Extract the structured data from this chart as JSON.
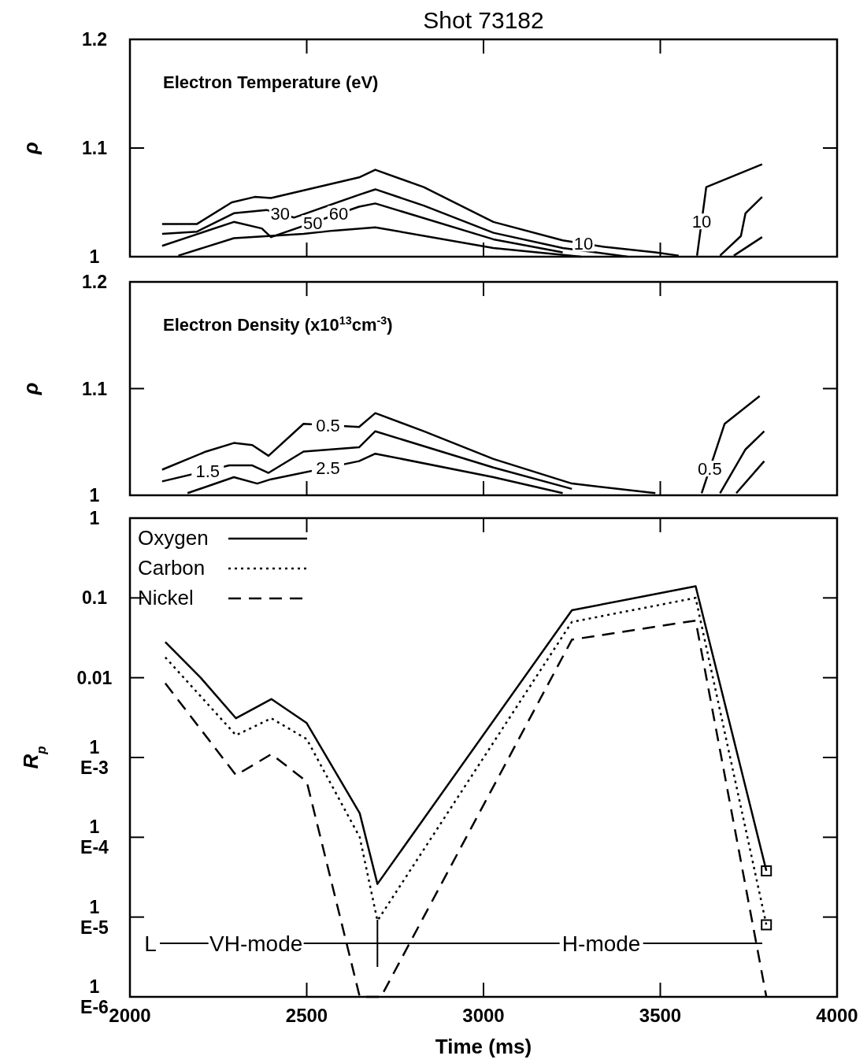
{
  "chart_data": [
    {
      "type": "line",
      "title": "Shot 73182",
      "subtitle": "Electron Temperature (eV)",
      "ylabel": "ρ",
      "xlim": [
        2000,
        4000
      ],
      "xticks": [
        2000,
        2500,
        3000,
        3500,
        4000
      ],
      "ylim": [
        1,
        1.2
      ],
      "yticks": [
        1,
        1.1,
        1.2
      ],
      "tick_labels": "y",
      "grid": false,
      "legend": false,
      "series": [
        {
          "color": "#000000",
          "x": [
            2091,
            2189,
            2288,
            2353,
            2399,
            2648,
            2694,
            2831,
            3028,
            3224,
            3342,
            3486,
            3552
          ],
          "values": [
            1.03,
            1.03,
            1.05,
            1.055,
            1.054,
            1.073,
            1.08,
            1.064,
            1.032,
            1.015,
            1.009,
            1.004,
            1.001
          ]
        },
        {
          "color": "#000000",
          "x": [
            2091,
            2189,
            2294,
            2386,
            2464,
            2648,
            2694,
            2831,
            3028,
            3224,
            3408
          ],
          "values": [
            1.021,
            1.023,
            1.04,
            1.043,
            1.036,
            1.057,
            1.062,
            1.047,
            1.022,
            1.008,
            1.0
          ]
        },
        {
          "color": "#000000",
          "x": [
            2091,
            2294,
            2373,
            2399,
            2648,
            2694,
            3028,
            3224
          ],
          "values": [
            1.01,
            1.032,
            1.026,
            1.018,
            1.046,
            1.049,
            1.016,
            1.004
          ]
        },
        {
          "color": "#000000",
          "x": [
            2137,
            2294,
            2491,
            2576,
            2694,
            3028,
            3276
          ],
          "values": [
            1.001,
            1.017,
            1.021,
            1.024,
            1.027,
            1.008,
            1.0
          ]
        },
        {
          "color": "#000000",
          "x": [
            3604,
            3630,
            3788
          ],
          "values": [
            1.001,
            1.064,
            1.085
          ]
        },
        {
          "color": "#000000",
          "x": [
            3669,
            3728,
            3741,
            3788
          ],
          "values": [
            1.001,
            1.019,
            1.04,
            1.055
          ]
        },
        {
          "color": "#000000",
          "x": [
            3708,
            3788
          ],
          "values": [
            1.001,
            1.018
          ]
        }
      ],
      "annotations": [
        {
          "text": "30",
          "x": 2425,
          "y": 1.0395
        },
        {
          "text": "50",
          "x": 2517,
          "y": 1.031
        },
        {
          "text": "60",
          "x": 2590,
          "y": 1.0395
        },
        {
          "text": "10",
          "x": 3283,
          "y": 1.012
        },
        {
          "text": "10",
          "x": 3617,
          "y": 1.0325
        }
      ]
    },
    {
      "type": "line",
      "subtitle": "Electron Density (x10$^{13}$cm$^{-3}$)",
      "ylabel": "ρ",
      "xlim": [
        2000,
        4000
      ],
      "xticks": [
        2000,
        2500,
        3000,
        3500,
        4000
      ],
      "ylim": [
        1,
        1.2
      ],
      "yticks": [
        1,
        1.1,
        1.2
      ],
      "tick_labels": "y",
      "grid": false,
      "legend": false,
      "series": [
        {
          "color": "#000000",
          "x": [
            2091,
            2215,
            2294,
            2346,
            2392,
            2491,
            2648,
            2694,
            2831,
            3028,
            3250,
            3486
          ],
          "values": [
            1.024,
            1.041,
            1.049,
            1.047,
            1.037,
            1.067,
            1.064,
            1.077,
            1.06,
            1.034,
            1.011,
            1.002
          ]
        },
        {
          "color": "#000000",
          "x": [
            2091,
            2281,
            2346,
            2392,
            2491,
            2648,
            2694,
            3028,
            3250
          ],
          "values": [
            1.013,
            1.028,
            1.028,
            1.021,
            1.041,
            1.045,
            1.06,
            1.026,
            1.006
          ]
        },
        {
          "color": "#000000",
          "x": [
            2163,
            2294,
            2360,
            2399,
            2648,
            2694,
            3028,
            3224
          ],
          "values": [
            1.002,
            1.017,
            1.011,
            1.015,
            1.032,
            1.039,
            1.017,
            1.002
          ]
        },
        {
          "color": "#000000",
          "x": [
            3617,
            3682,
            3781
          ],
          "values": [
            1.002,
            1.067,
            1.093
          ]
        },
        {
          "color": "#000000",
          "x": [
            3669,
            3741,
            3794
          ],
          "values": [
            1.002,
            1.043,
            1.06
          ]
        },
        {
          "color": "#000000",
          "x": [
            3715,
            3794
          ],
          "values": [
            1.002,
            1.032
          ]
        }
      ],
      "annotations": [
        {
          "text": "0.5",
          "x": 2560,
          "y": 1.066
        },
        {
          "text": "1.5",
          "x": 2220,
          "y": 1.023
        },
        {
          "text": "2.5",
          "x": 2560,
          "y": 1.026
        },
        {
          "text": "0.5",
          "x": 3640,
          "y": 1.025
        }
      ]
    },
    {
      "type": "line",
      "xlabel": "Time (ms)",
      "ylabel": "R$_{p}$",
      "log": "y",
      "xlim": [
        2000,
        4000
      ],
      "xticks": [
        2000,
        2500,
        3000,
        3500,
        4000
      ],
      "ylim": [
        1e-06,
        1
      ],
      "yticks": [
        {
          "value": 1,
          "label": "1"
        },
        {
          "value": 0.1,
          "label": "0.1"
        },
        {
          "value": 0.01,
          "label": "0.01"
        },
        {
          "value": 0.001,
          "label": "1\nE-3"
        },
        {
          "value": 0.0001,
          "label": "1\nE-4"
        },
        {
          "value": 1e-05,
          "label": "1\nE-5"
        },
        {
          "value": 1e-06,
          "label": "1\nE-6"
        }
      ],
      "grid": false,
      "legend": "top left",
      "series": [
        {
          "name": "Oxygen",
          "color": "#000000",
          "line_style": "solid",
          "x": [
            2100,
            2200,
            2300,
            2400,
            2500,
            2650,
            2700,
            3250,
            3600,
            3800
          ],
          "values": [
            0.028,
            0.01,
            0.0031,
            0.0054,
            0.0027,
            0.0002,
            2.6e-05,
            0.07,
            0.14,
            3.8e-05
          ]
        },
        {
          "name": "Carbon",
          "color": "#000000",
          "line_style": "dotted",
          "x": [
            2100,
            2300,
            2400,
            2500,
            2650,
            2700,
            3250,
            3600,
            3800
          ],
          "values": [
            0.018,
            0.0019,
            0.0031,
            0.0017,
            0.0001,
            9e-06,
            0.05,
            0.1,
            8e-06
          ]
        },
        {
          "name": "Nickel",
          "color": "#000000",
          "line_style": "dashed",
          "x": [
            2100,
            2300,
            2400,
            2500,
            2650,
            2710,
            3250,
            3600,
            3800
          ],
          "values": [
            0.0085,
            0.0006,
            0.0011,
            0.0005,
            1e-06,
            1e-06,
            0.03,
            0.052,
            1e-06
          ]
        },
        {
          "type": "scatter",
          "color": "#000000",
          "marker": "square",
          "x": [
            3800,
            3800
          ],
          "values": [
            3.8e-05,
            8e-06
          ]
        }
      ],
      "annotations": [
        "L",
        "VH-mode",
        "H-mode"
      ]
    }
  ]
}
